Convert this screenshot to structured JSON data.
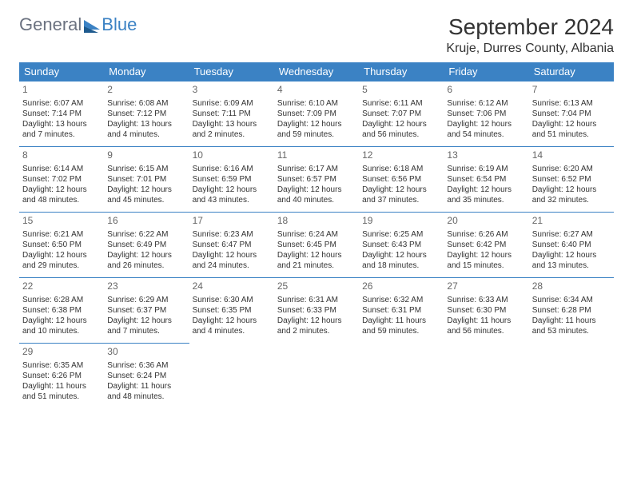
{
  "logo": {
    "general": "General",
    "blue": "Blue",
    "icon_color": "#3b82c4"
  },
  "title": "September 2024",
  "location": "Kruje, Durres County, Albania",
  "header_bg": "#3b82c4",
  "header_fg": "#ffffff",
  "border_color": "#3b82c4",
  "day_headers": [
    "Sunday",
    "Monday",
    "Tuesday",
    "Wednesday",
    "Thursday",
    "Friday",
    "Saturday"
  ],
  "weeks": [
    [
      {
        "n": "1",
        "sunrise": "6:07 AM",
        "sunset": "7:14 PM",
        "daylight": "13 hours and 7 minutes."
      },
      {
        "n": "2",
        "sunrise": "6:08 AM",
        "sunset": "7:12 PM",
        "daylight": "13 hours and 4 minutes."
      },
      {
        "n": "3",
        "sunrise": "6:09 AM",
        "sunset": "7:11 PM",
        "daylight": "13 hours and 2 minutes."
      },
      {
        "n": "4",
        "sunrise": "6:10 AM",
        "sunset": "7:09 PM",
        "daylight": "12 hours and 59 minutes."
      },
      {
        "n": "5",
        "sunrise": "6:11 AM",
        "sunset": "7:07 PM",
        "daylight": "12 hours and 56 minutes."
      },
      {
        "n": "6",
        "sunrise": "6:12 AM",
        "sunset": "7:06 PM",
        "daylight": "12 hours and 54 minutes."
      },
      {
        "n": "7",
        "sunrise": "6:13 AM",
        "sunset": "7:04 PM",
        "daylight": "12 hours and 51 minutes."
      }
    ],
    [
      {
        "n": "8",
        "sunrise": "6:14 AM",
        "sunset": "7:02 PM",
        "daylight": "12 hours and 48 minutes."
      },
      {
        "n": "9",
        "sunrise": "6:15 AM",
        "sunset": "7:01 PM",
        "daylight": "12 hours and 45 minutes."
      },
      {
        "n": "10",
        "sunrise": "6:16 AM",
        "sunset": "6:59 PM",
        "daylight": "12 hours and 43 minutes."
      },
      {
        "n": "11",
        "sunrise": "6:17 AM",
        "sunset": "6:57 PM",
        "daylight": "12 hours and 40 minutes."
      },
      {
        "n": "12",
        "sunrise": "6:18 AM",
        "sunset": "6:56 PM",
        "daylight": "12 hours and 37 minutes."
      },
      {
        "n": "13",
        "sunrise": "6:19 AM",
        "sunset": "6:54 PM",
        "daylight": "12 hours and 35 minutes."
      },
      {
        "n": "14",
        "sunrise": "6:20 AM",
        "sunset": "6:52 PM",
        "daylight": "12 hours and 32 minutes."
      }
    ],
    [
      {
        "n": "15",
        "sunrise": "6:21 AM",
        "sunset": "6:50 PM",
        "daylight": "12 hours and 29 minutes."
      },
      {
        "n": "16",
        "sunrise": "6:22 AM",
        "sunset": "6:49 PM",
        "daylight": "12 hours and 26 minutes."
      },
      {
        "n": "17",
        "sunrise": "6:23 AM",
        "sunset": "6:47 PM",
        "daylight": "12 hours and 24 minutes."
      },
      {
        "n": "18",
        "sunrise": "6:24 AM",
        "sunset": "6:45 PM",
        "daylight": "12 hours and 21 minutes."
      },
      {
        "n": "19",
        "sunrise": "6:25 AM",
        "sunset": "6:43 PM",
        "daylight": "12 hours and 18 minutes."
      },
      {
        "n": "20",
        "sunrise": "6:26 AM",
        "sunset": "6:42 PM",
        "daylight": "12 hours and 15 minutes."
      },
      {
        "n": "21",
        "sunrise": "6:27 AM",
        "sunset": "6:40 PM",
        "daylight": "12 hours and 13 minutes."
      }
    ],
    [
      {
        "n": "22",
        "sunrise": "6:28 AM",
        "sunset": "6:38 PM",
        "daylight": "12 hours and 10 minutes."
      },
      {
        "n": "23",
        "sunrise": "6:29 AM",
        "sunset": "6:37 PM",
        "daylight": "12 hours and 7 minutes."
      },
      {
        "n": "24",
        "sunrise": "6:30 AM",
        "sunset": "6:35 PM",
        "daylight": "12 hours and 4 minutes."
      },
      {
        "n": "25",
        "sunrise": "6:31 AM",
        "sunset": "6:33 PM",
        "daylight": "12 hours and 2 minutes."
      },
      {
        "n": "26",
        "sunrise": "6:32 AM",
        "sunset": "6:31 PM",
        "daylight": "11 hours and 59 minutes."
      },
      {
        "n": "27",
        "sunrise": "6:33 AM",
        "sunset": "6:30 PM",
        "daylight": "11 hours and 56 minutes."
      },
      {
        "n": "28",
        "sunrise": "6:34 AM",
        "sunset": "6:28 PM",
        "daylight": "11 hours and 53 minutes."
      }
    ],
    [
      {
        "n": "29",
        "sunrise": "6:35 AM",
        "sunset": "6:26 PM",
        "daylight": "11 hours and 51 minutes."
      },
      {
        "n": "30",
        "sunrise": "6:36 AM",
        "sunset": "6:24 PM",
        "daylight": "11 hours and 48 minutes."
      },
      null,
      null,
      null,
      null,
      null
    ]
  ],
  "labels": {
    "sunrise": "Sunrise:",
    "sunset": "Sunset:",
    "daylight": "Daylight:"
  }
}
